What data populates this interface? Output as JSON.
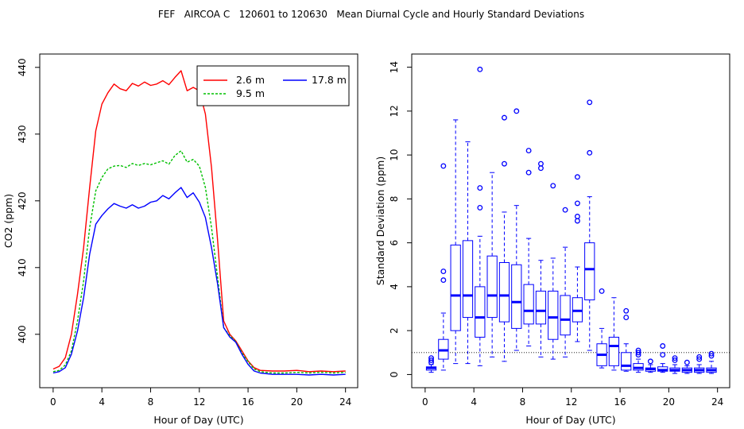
{
  "title": "FEF   AIRCOA C   120601 to 120630   Mean Diurnal Cycle and Hourly Standard Deviations",
  "chart_data": [
    {
      "type": "line",
      "xlabel": "Hour of Day (UTC)",
      "ylabel": "CO2 (ppm)",
      "xlim": [
        -1.1,
        25
      ],
      "ylim": [
        392,
        442
      ],
      "xticks": [
        0,
        4,
        8,
        12,
        16,
        20,
        24
      ],
      "yticks": [
        400,
        410,
        420,
        430,
        440
      ],
      "x_tick_labels": [
        "0",
        "4",
        "8",
        "12",
        "16",
        "20",
        "24"
      ],
      "y_tick_labels": [
        "400",
        "410",
        "420",
        "430",
        "440"
      ],
      "legend_position": "top-right",
      "series": [
        {
          "name": "2.6 m",
          "color": "#ff0000",
          "dash": "",
          "x": [
            0,
            0.5,
            1,
            1.5,
            2,
            2.5,
            3,
            3.5,
            4,
            4.5,
            5,
            5.5,
            6,
            6.5,
            7,
            7.5,
            8,
            8.5,
            9,
            9.5,
            10,
            10.5,
            11,
            11.5,
            12,
            12.5,
            13,
            13.5,
            14,
            14.5,
            15,
            15.5,
            16,
            16.5,
            17,
            18,
            19,
            20,
            21,
            22,
            23,
            24
          ],
          "values": [
            394.8,
            395.2,
            396.5,
            400,
            406,
            413,
            422,
            430.5,
            434.5,
            436.2,
            437.5,
            436.8,
            436.5,
            437.6,
            437.2,
            437.8,
            437.3,
            437.5,
            438,
            437.4,
            438.5,
            439.5,
            436.5,
            437,
            436.5,
            433,
            425,
            414,
            402,
            400,
            399,
            397.5,
            396,
            395,
            394.6,
            394.5,
            394.5,
            394.6,
            394.4,
            394.5,
            394.4,
            394.5
          ]
        },
        {
          "name": "9.5 m",
          "color": "#00c000",
          "dash": "3,2",
          "x": [
            0,
            0.5,
            1,
            1.5,
            2,
            2.5,
            3,
            3.5,
            4,
            4.5,
            5,
            5.5,
            6,
            6.5,
            7,
            7.5,
            8,
            8.5,
            9,
            9.5,
            10,
            10.5,
            11,
            11.5,
            12,
            12.5,
            13,
            13.5,
            14,
            14.5,
            15,
            15.5,
            16,
            16.5,
            17,
            18,
            19,
            20,
            21,
            22,
            23,
            24
          ],
          "values": [
            394.4,
            394.6,
            395.4,
            397.5,
            402,
            408,
            416,
            421.5,
            423.5,
            424.8,
            425.2,
            425.3,
            425,
            425.6,
            425.3,
            425.6,
            425.4,
            425.7,
            426,
            425.5,
            426.8,
            427.5,
            425.8,
            426.2,
            425.2,
            422,
            416,
            408.5,
            401,
            399.8,
            398.9,
            397.2,
            395.9,
            394.8,
            394.4,
            394.2,
            394.2,
            394.3,
            394.2,
            394.3,
            394.2,
            394.3
          ]
        },
        {
          "name": "17.8 m",
          "color": "#0000ff",
          "dash": "",
          "x": [
            0,
            0.5,
            1,
            1.5,
            2,
            2.5,
            3,
            3.5,
            4,
            4.5,
            5,
            5.5,
            6,
            6.5,
            7,
            7.5,
            8,
            8.5,
            9,
            9.5,
            10,
            10.5,
            11,
            11.5,
            12,
            12.5,
            13,
            13.5,
            14,
            14.5,
            15,
            15.5,
            16,
            16.5,
            17,
            18,
            19,
            20,
            21,
            22,
            23,
            24
          ],
          "values": [
            394.2,
            394.4,
            395,
            397,
            400.5,
            405.5,
            412,
            416.5,
            417.8,
            418.8,
            419.6,
            419.2,
            418.9,
            419.4,
            418.9,
            419.2,
            419.8,
            420,
            420.8,
            420.3,
            421.2,
            422,
            420.5,
            421.2,
            419.8,
            417.5,
            413,
            407.5,
            401,
            399.6,
            398.8,
            397,
            395.5,
            394.5,
            394.2,
            394,
            394,
            394,
            393.9,
            394,
            393.9,
            394
          ]
        }
      ]
    },
    {
      "type": "box",
      "xlabel": "Hour of Day (UTC)",
      "ylabel": "Standard Deviation (ppm)",
      "xlim": [
        -1.1,
        25
      ],
      "ylim": [
        -0.6,
        14.6
      ],
      "xticks": [
        0,
        4,
        8,
        12,
        16,
        20,
        24
      ],
      "yticks": [
        0,
        2,
        4,
        6,
        8,
        10,
        12,
        14
      ],
      "x_tick_labels": [
        "0",
        "4",
        "8",
        "12",
        "16",
        "20",
        "24"
      ],
      "y_tick_labels": [
        "0",
        "2",
        "4",
        "6",
        "8",
        "10",
        "12",
        "14"
      ],
      "reference_line": 1.0,
      "color": "#0000ff",
      "boxes": [
        {
          "hour": 0.5,
          "low": 0.1,
          "q1": 0.2,
          "median": 0.3,
          "q3": 0.35,
          "high": 0.45,
          "outliers": [
            0.55,
            0.65,
            0.75
          ]
        },
        {
          "hour": 1.5,
          "low": 0.2,
          "q1": 0.7,
          "median": 1.1,
          "q3": 1.6,
          "high": 2.8,
          "outliers": [
            4.3,
            4.7,
            9.5
          ]
        },
        {
          "hour": 2.5,
          "low": 0.5,
          "q1": 2.0,
          "median": 3.6,
          "q3": 5.9,
          "high": 11.6,
          "outliers": []
        },
        {
          "hour": 3.5,
          "low": 0.5,
          "q1": 2.6,
          "median": 3.6,
          "q3": 6.1,
          "high": 10.6,
          "outliers": []
        },
        {
          "hour": 4.5,
          "low": 0.4,
          "q1": 1.7,
          "median": 2.6,
          "q3": 4.0,
          "high": 6.3,
          "outliers": [
            7.6,
            8.5,
            13.9
          ]
        },
        {
          "hour": 5.5,
          "low": 0.8,
          "q1": 2.6,
          "median": 3.6,
          "q3": 5.4,
          "high": 9.2,
          "outliers": []
        },
        {
          "hour": 6.5,
          "low": 0.6,
          "q1": 2.4,
          "median": 3.6,
          "q3": 5.1,
          "high": 7.4,
          "outliers": [
            9.6,
            11.7
          ]
        },
        {
          "hour": 7.5,
          "low": 1.1,
          "q1": 2.1,
          "median": 3.3,
          "q3": 5.0,
          "high": 7.7,
          "outliers": [
            12.0
          ]
        },
        {
          "hour": 8.5,
          "low": 1.3,
          "q1": 2.3,
          "median": 2.9,
          "q3": 4.1,
          "high": 6.2,
          "outliers": [
            9.2,
            10.2
          ]
        },
        {
          "hour": 9.5,
          "low": 0.8,
          "q1": 2.3,
          "median": 2.9,
          "q3": 3.8,
          "high": 5.2,
          "outliers": [
            9.4,
            9.6
          ]
        },
        {
          "hour": 10.5,
          "low": 0.7,
          "q1": 1.6,
          "median": 2.6,
          "q3": 3.8,
          "high": 5.3,
          "outliers": [
            8.6
          ]
        },
        {
          "hour": 11.5,
          "low": 0.8,
          "q1": 1.8,
          "median": 2.5,
          "q3": 3.6,
          "high": 5.8,
          "outliers": [
            7.5
          ]
        },
        {
          "hour": 12.5,
          "low": 1.5,
          "q1": 2.4,
          "median": 2.9,
          "q3": 3.5,
          "high": 4.9,
          "outliers": [
            7.0,
            7.2,
            7.8,
            9.0
          ]
        },
        {
          "hour": 13.5,
          "low": 1.1,
          "q1": 3.4,
          "median": 4.8,
          "q3": 6.0,
          "high": 8.1,
          "outliers": [
            10.1,
            12.4
          ]
        },
        {
          "hour": 14.5,
          "low": 0.3,
          "q1": 0.4,
          "median": 0.9,
          "q3": 1.4,
          "high": 2.1,
          "outliers": [
            3.8
          ]
        },
        {
          "hour": 15.5,
          "low": 0.2,
          "q1": 0.4,
          "median": 1.3,
          "q3": 1.7,
          "high": 3.5,
          "outliers": []
        },
        {
          "hour": 16.5,
          "low": 0.15,
          "q1": 0.2,
          "median": 0.4,
          "q3": 1.0,
          "high": 1.4,
          "outliers": [
            2.6,
            2.9
          ]
        },
        {
          "hour": 17.5,
          "low": 0.1,
          "q1": 0.2,
          "median": 0.3,
          "q3": 0.5,
          "high": 0.7,
          "outliers": [
            0.9,
            1.0,
            1.1
          ]
        },
        {
          "hour": 18.5,
          "low": 0.1,
          "q1": 0.15,
          "median": 0.25,
          "q3": 0.3,
          "high": 0.45,
          "outliers": [
            0.6
          ]
        },
        {
          "hour": 19.5,
          "low": 0.1,
          "q1": 0.15,
          "median": 0.2,
          "q3": 0.35,
          "high": 0.5,
          "outliers": [
            0.9,
            1.3
          ]
        },
        {
          "hour": 20.5,
          "low": 0.05,
          "q1": 0.15,
          "median": 0.2,
          "q3": 0.3,
          "high": 0.45,
          "outliers": [
            0.65,
            0.75
          ]
        },
        {
          "hour": 21.5,
          "low": 0.05,
          "q1": 0.1,
          "median": 0.2,
          "q3": 0.3,
          "high": 0.4,
          "outliers": [
            0.55
          ]
        },
        {
          "hour": 22.5,
          "low": 0.05,
          "q1": 0.1,
          "median": 0.2,
          "q3": 0.3,
          "high": 0.45,
          "outliers": [
            0.7,
            0.8
          ]
        },
        {
          "hour": 23.5,
          "low": 0.05,
          "q1": 0.1,
          "median": 0.2,
          "q3": 0.3,
          "high": 0.6,
          "outliers": [
            0.85,
            0.95
          ]
        }
      ]
    }
  ]
}
